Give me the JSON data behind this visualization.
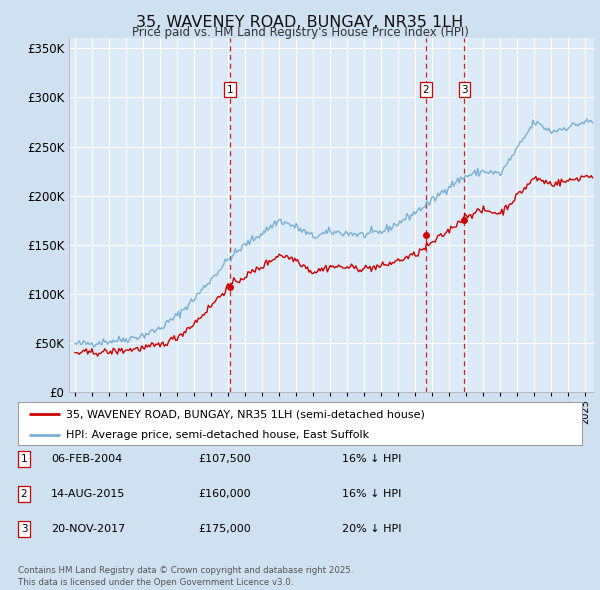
{
  "title": "35, WAVENEY ROAD, BUNGAY, NR35 1LH",
  "subtitle": "Price paid vs. HM Land Registry's House Price Index (HPI)",
  "bg_color": "#cfe0f0",
  "plot_bg_color": "#ddeaf7",
  "ylim": [
    0,
    360000
  ],
  "yticks": [
    0,
    50000,
    100000,
    150000,
    200000,
    250000,
    300000,
    350000
  ],
  "ytick_labels": [
    "£0",
    "£50K",
    "£100K",
    "£150K",
    "£200K",
    "£250K",
    "£300K",
    "£350K"
  ],
  "sale_year_floats": [
    2004.1,
    2015.62,
    2017.89
  ],
  "sale_prices": [
    107500,
    160000,
    175000
  ],
  "sale_labels": [
    "1",
    "2",
    "3"
  ],
  "sale_label_info": [
    {
      "label": "1",
      "date": "06-FEB-2004",
      "price": "£107,500",
      "pct": "16% ↓ HPI"
    },
    {
      "label": "2",
      "date": "14-AUG-2015",
      "price": "£160,000",
      "pct": "16% ↓ HPI"
    },
    {
      "label": "3",
      "date": "20-NOV-2017",
      "price": "£175,000",
      "pct": "20% ↓ HPI"
    }
  ],
  "legend_line1": "35, WAVENEY ROAD, BUNGAY, NR35 1LH (semi-detached house)",
  "legend_line2": "HPI: Average price, semi-detached house, East Suffolk",
  "footer": "Contains HM Land Registry data © Crown copyright and database right 2025.\nThis data is licensed under the Open Government Licence v3.0.",
  "line_price_color": "#cc0000",
  "line_hpi_color": "#7ab0d4",
  "xstart": 1995,
  "xend": 2025.5
}
